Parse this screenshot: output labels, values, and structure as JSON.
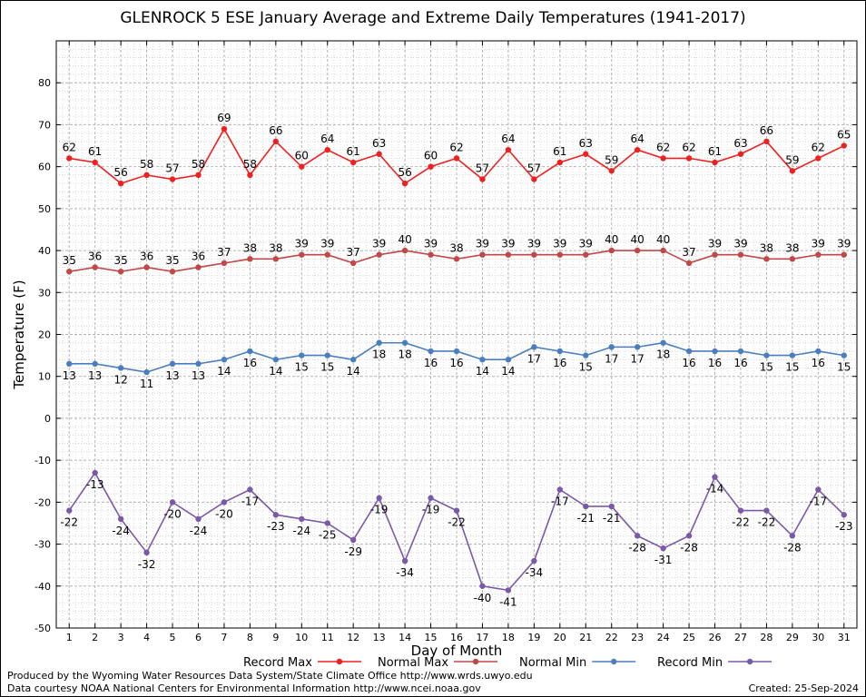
{
  "chart_data": {
    "type": "line",
    "title": "GLENROCK 5 ESE January Average and Extreme Daily Temperatures (1941-2017)",
    "xlabel": "Day of Month",
    "ylabel": "Temperature (F)",
    "ylim": [
      -50,
      90
    ],
    "yticks": [
      -50,
      -40,
      -30,
      -20,
      -10,
      0,
      10,
      20,
      30,
      40,
      50,
      60,
      70,
      80
    ],
    "x": [
      1,
      2,
      3,
      4,
      5,
      6,
      7,
      8,
      9,
      10,
      11,
      12,
      13,
      14,
      15,
      16,
      17,
      18,
      19,
      20,
      21,
      22,
      23,
      24,
      25,
      26,
      27,
      28,
      29,
      30,
      31
    ],
    "grid": true,
    "legend_position": "bottom",
    "series": [
      {
        "name": "Record Max",
        "color": "#ee2020",
        "values": [
          62,
          61,
          56,
          58,
          57,
          58,
          69,
          58,
          66,
          60,
          64,
          61,
          63,
          56,
          60,
          62,
          57,
          64,
          57,
          61,
          63,
          59,
          64,
          62,
          62,
          61,
          63,
          66,
          59,
          62,
          65
        ]
      },
      {
        "name": "Normal Max",
        "color": "#c04848",
        "values": [
          35,
          36,
          35,
          36,
          35,
          36,
          37,
          38,
          38,
          39,
          39,
          37,
          39,
          40,
          39,
          38,
          39,
          39,
          39,
          39,
          39,
          40,
          40,
          40,
          37,
          39,
          39,
          38,
          38,
          39,
          39
        ]
      },
      {
        "name": "Normal Min",
        "color": "#4a7fbf",
        "values": [
          13,
          13,
          12,
          11,
          13,
          13,
          14,
          16,
          14,
          15,
          15,
          14,
          18,
          18,
          16,
          16,
          14,
          14,
          17,
          16,
          15,
          17,
          17,
          18,
          16,
          16,
          16,
          15,
          15,
          16,
          15
        ]
      },
      {
        "name": "Record Min",
        "color": "#7a5aa8",
        "values": [
          -22,
          -13,
          -24,
          -32,
          -20,
          -24,
          -20,
          -17,
          -23,
          -24,
          -25,
          -29,
          -19,
          -34,
          -19,
          -22,
          -40,
          -41,
          -34,
          -17,
          -21,
          -21,
          -28,
          -31,
          -28,
          -14,
          -22,
          -22,
          -28,
          -17,
          -23
        ]
      }
    ]
  },
  "footer": {
    "line1": "Produced by the Wyoming Water Resources Data System/State Climate Office http://www.wrds.uwyo.edu",
    "line2": "Data courtesy NOAA National Centers for Environmental Information http://www.ncei.noaa.gov",
    "created": "Created:  25-Sep-2024"
  }
}
